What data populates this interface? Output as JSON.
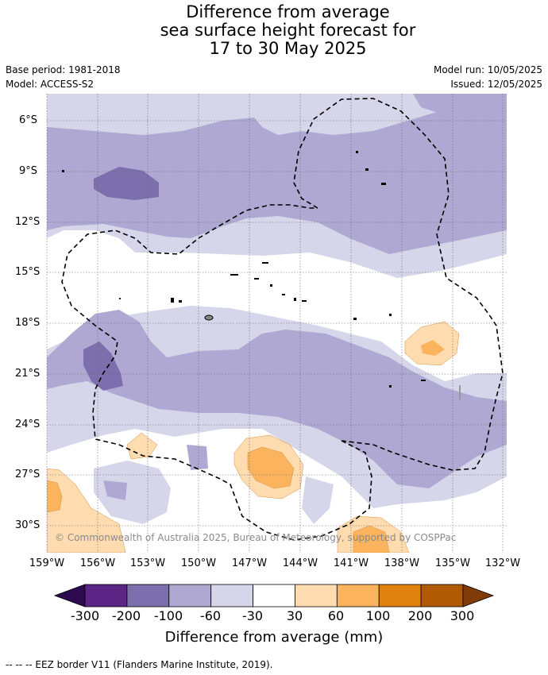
{
  "title": {
    "line1": "Difference from average",
    "line2": "sea surface height forecast for",
    "line3": "17 to 30 May 2025"
  },
  "meta": {
    "base_period": "Base period: 1981-2018",
    "model": "Model: ACCESS-S2",
    "model_run": "Model run: 10/05/2025",
    "issued": "Issued: 12/05/2025"
  },
  "map": {
    "lat_labels": [
      "6°S",
      "9°S",
      "12°S",
      "15°S",
      "18°S",
      "21°S",
      "24°S",
      "27°S",
      "30°S"
    ],
    "lon_labels": [
      "159°W",
      "156°W",
      "153°W",
      "150°W",
      "147°W",
      "144°W",
      "141°W",
      "138°W",
      "135°W",
      "132°W"
    ],
    "copyright": "© Commonwealth of Australia 2025, Bureau of Meteorology, supported by COSPPac"
  },
  "colorbar": {
    "title": "Difference from average (mm)",
    "tick_labels": [
      "-300",
      "-200",
      "-100",
      "-60",
      "-30",
      "30",
      "60",
      "100",
      "200",
      "300"
    ],
    "colors": [
      "#2d0a4f",
      "#5a2585",
      "#7d6ead",
      "#aea8d2",
      "#d6d6ea",
      "#ffffff",
      "#fedcb0",
      "#fbb35e",
      "#e0820f",
      "#b15a06",
      "#7f3b08"
    ]
  },
  "legend": {
    "eez": "--  --  -- EEZ border V11 (Flanders Marine Institute, 2019)."
  }
}
